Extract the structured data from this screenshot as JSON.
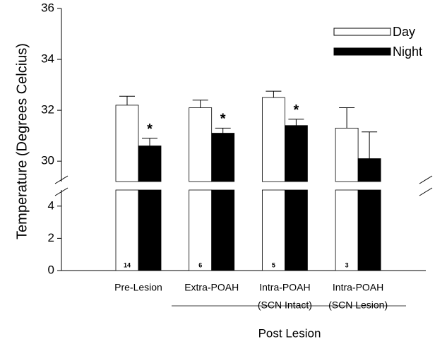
{
  "chart_data": {
    "type": "bar",
    "y_label": "Temperature (Degrees Celcius)",
    "categories": [
      [
        "Pre-Lesion"
      ],
      [
        "Extra-POAH"
      ],
      [
        "Intra-POAH",
        "(SCN Intact)"
      ],
      [
        "Intra-POAH",
        "(SCN Lesion)"
      ]
    ],
    "group_label": "Post Lesion",
    "series": [
      {
        "name": "Day",
        "color": "#ffffff",
        "values": [
          32.2,
          32.1,
          32.5,
          31.3
        ],
        "errors": [
          0.35,
          0.3,
          0.25,
          0.8
        ]
      },
      {
        "name": "Night",
        "color": "#000000",
        "values": [
          30.6,
          31.1,
          31.4,
          30.1
        ],
        "errors": [
          0.3,
          0.2,
          0.25,
          1.05
        ]
      }
    ],
    "sample_sizes": [
      "14",
      "6",
      "5",
      "3"
    ],
    "significance": [
      "*",
      "*",
      "*",
      null
    ],
    "ylim": [
      29.2,
      36
    ],
    "yticks": [
      30,
      32,
      34,
      36
    ],
    "ylim_lower": [
      0,
      5
    ],
    "yticks_lower": [
      0,
      2,
      4
    ],
    "legend": "top-right"
  }
}
